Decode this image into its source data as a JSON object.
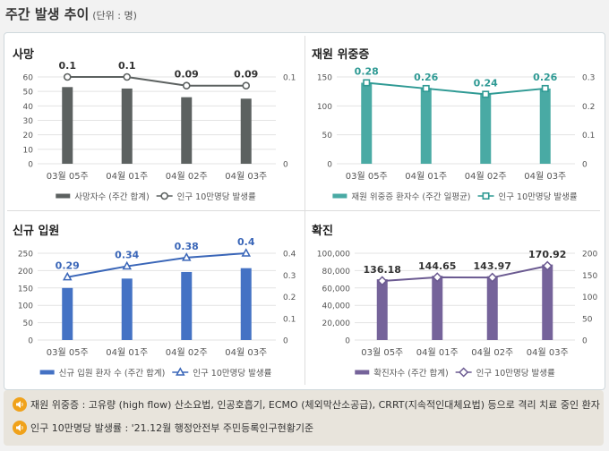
{
  "page": {
    "title": "주간 발생 추이",
    "unit": "(단위 : 명)"
  },
  "colors": {
    "axis_text": "#555555",
    "grid": "#e3e3e3",
    "line_marker_fill": "#ffffff"
  },
  "chart_data": [
    {
      "id": "deaths",
      "type": "bar+line",
      "title": "사망",
      "categories": [
        "03월 05주",
        "04월 01주",
        "04월 02주",
        "04월 03주"
      ],
      "bar_series": {
        "name": "사망자수 (주간 합계)",
        "values": [
          53,
          52,
          46,
          45
        ],
        "color": "#5c6160"
      },
      "line_series": {
        "name": "인구 10만명당 발생률",
        "values": [
          0.1,
          0.1,
          0.09,
          0.09
        ],
        "labels": [
          "0.1",
          "0.1",
          "0.09",
          "0.09"
        ],
        "color": "#5c6160",
        "marker": "circle"
      },
      "left_axis": {
        "min": 0,
        "max": 60,
        "ticks": [
          0,
          10,
          20,
          30,
          40,
          50,
          60
        ],
        "tick_labels": [
          "0",
          "10",
          "20",
          "30",
          "40",
          "50",
          "60"
        ]
      },
      "right_axis": {
        "min": 0,
        "max": 0.1,
        "ticks": [
          0,
          0.1
        ],
        "tick_labels": [
          "0",
          "0.1"
        ]
      },
      "label_color": "#333333"
    },
    {
      "id": "severe",
      "type": "bar+line",
      "title": "재원 위중증",
      "categories": [
        "03월 05주",
        "04월 01주",
        "04월 02주",
        "04월 03주"
      ],
      "bar_series": {
        "name": "재원 위중증 환자수 (주간 일평균)",
        "values": [
          140,
          131,
          120,
          130
        ],
        "color": "#49aaa4"
      },
      "line_series": {
        "name": "인구 10만명당 발생률",
        "values": [
          0.28,
          0.26,
          0.24,
          0.26
        ],
        "labels": [
          "0.28",
          "0.26",
          "0.24",
          "0.26"
        ],
        "color": "#2f9a94",
        "marker": "square"
      },
      "left_axis": {
        "min": 0,
        "max": 150,
        "ticks": [
          0,
          50,
          100,
          150
        ],
        "tick_labels": [
          "0",
          "50",
          "100",
          "150"
        ]
      },
      "right_axis": {
        "min": 0,
        "max": 0.3,
        "ticks": [
          0,
          0.1,
          0.2,
          0.3
        ],
        "tick_labels": [
          "0",
          "0.1",
          "0.2",
          "0.3"
        ]
      },
      "label_color": "#2f9a94"
    },
    {
      "id": "admissions",
      "type": "bar+line",
      "title": "신규 입원",
      "categories": [
        "03월 05주",
        "04월 01주",
        "04월 02주",
        "04월 03주"
      ],
      "bar_series": {
        "name": "신규 입원 환자 수 (주간 합계)",
        "values": [
          150,
          177,
          196,
          207
        ],
        "color": "#4472c4"
      },
      "line_series": {
        "name": "인구 10만명당 발생률",
        "values": [
          0.29,
          0.34,
          0.38,
          0.4
        ],
        "labels": [
          "0.29",
          "0.34",
          "0.38",
          "0.4"
        ],
        "color": "#3a66b8",
        "marker": "triangle"
      },
      "left_axis": {
        "min": 0,
        "max": 250,
        "ticks": [
          0,
          50,
          100,
          150,
          200,
          250
        ],
        "tick_labels": [
          "0",
          "50",
          "100",
          "150",
          "200",
          "250"
        ]
      },
      "right_axis": {
        "min": 0,
        "max": 0.4,
        "ticks": [
          0,
          0.1,
          0.2,
          0.3,
          0.4
        ],
        "tick_labels": [
          "0",
          "0.1",
          "0.2",
          "0.3",
          "0.4"
        ]
      },
      "label_color": "#3a66b8"
    },
    {
      "id": "confirmed",
      "type": "bar+line",
      "title": "확진",
      "categories": [
        "03월 05주",
        "04월 01주",
        "04월 02주",
        "04월 03주"
      ],
      "bar_series": {
        "name": "확진자수 (주간 합계)",
        "values": [
          70000,
          74000,
          73500,
          87000
        ],
        "color": "#75639a"
      },
      "line_series": {
        "name": "인구 10만명당 발생률",
        "values": [
          136.18,
          144.65,
          143.97,
          170.92
        ],
        "labels": [
          "136.18",
          "144.65",
          "143.97",
          "170.92"
        ],
        "color": "#6b5a91",
        "marker": "diamond"
      },
      "left_axis": {
        "min": 0,
        "max": 100000,
        "ticks": [
          0,
          20000,
          40000,
          60000,
          80000,
          100000
        ],
        "tick_labels": [
          "0",
          "20,000",
          "40,000",
          "60,000",
          "80,000",
          "100,000"
        ]
      },
      "right_axis": {
        "min": 0,
        "max": 200,
        "ticks": [
          0,
          50,
          100,
          150,
          200
        ],
        "tick_labels": [
          "0",
          "50",
          "100",
          "150",
          "200"
        ]
      },
      "label_color": "#333333"
    }
  ],
  "notes": [
    {
      "icon": "speaker-icon",
      "text": "재원 위중증 : 고유량 (high flow) 산소요법, 인공호흡기, ECMO (체외막산소공급), CRRT(지속적인대체요법) 등으로 격리 치료 중인 환자"
    },
    {
      "icon": "speaker-icon",
      "text": "인구 10만명당 발생률 : '21.12월 행정안전부 주민등록인구현황기준"
    }
  ]
}
